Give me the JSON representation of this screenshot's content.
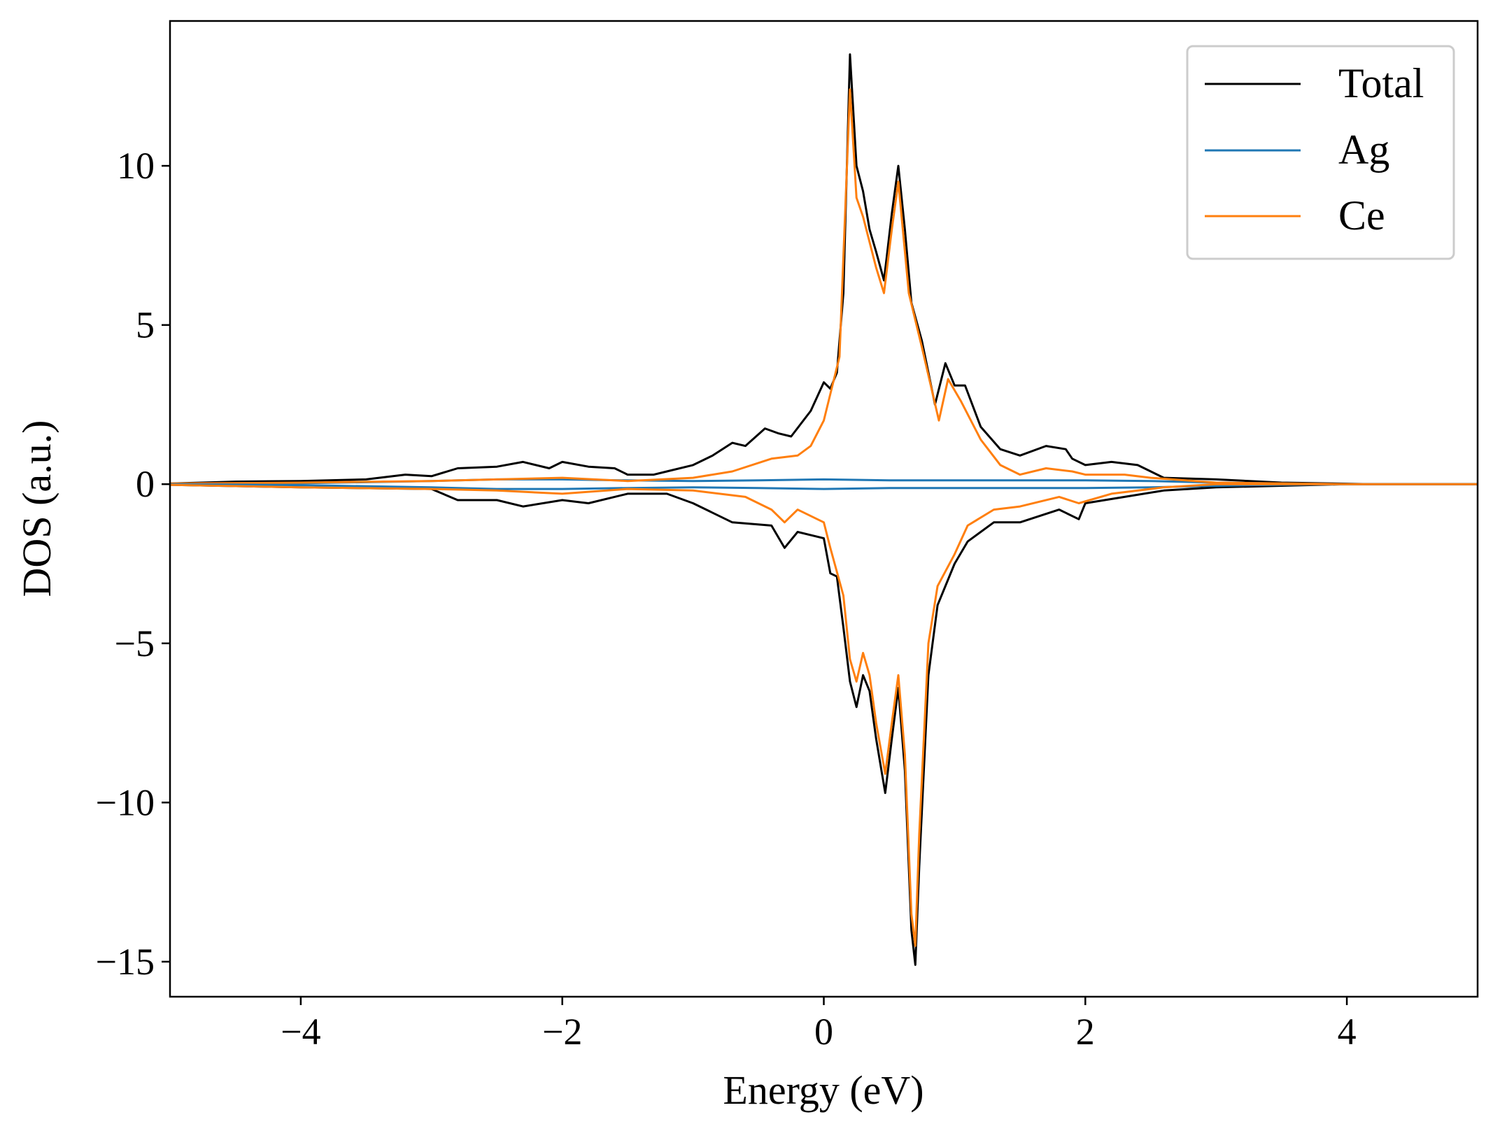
{
  "chart_data": {
    "type": "line",
    "title": "",
    "xlabel": "Energy (eV)",
    "ylabel": "DOS (a.u.)",
    "xlim": [
      -5,
      5
    ],
    "ylim": [
      -16.1,
      14.55
    ],
    "xticks": [
      -4,
      -2,
      0,
      2,
      4
    ],
    "yticks": [
      -15,
      -10,
      -5,
      0,
      5,
      10
    ],
    "xtick_labels": [
      "−4",
      "−2",
      "0",
      "2",
      "4"
    ],
    "ytick_labels": [
      "−15",
      "−10",
      "−5",
      "0",
      "5",
      "10"
    ],
    "grid": false,
    "legend": {
      "placement": "top-right",
      "entries": [
        "Total",
        "Ag",
        "Ce"
      ]
    },
    "series": [
      {
        "name": "Total",
        "color": "#000000",
        "spin": "up",
        "x": [
          -5,
          -4.5,
          -4,
          -3.5,
          -3.2,
          -3,
          -2.8,
          -2.5,
          -2.3,
          -2.1,
          -2,
          -1.8,
          -1.6,
          -1.5,
          -1.3,
          -1.2,
          -1,
          -0.85,
          -0.7,
          -0.6,
          -0.45,
          -0.35,
          -0.25,
          -0.1,
          0,
          0.05,
          0.1,
          0.15,
          0.2,
          0.25,
          0.3,
          0.35,
          0.4,
          0.46,
          0.52,
          0.57,
          0.62,
          0.67,
          0.75,
          0.85,
          0.93,
          1.0,
          1.08,
          1.2,
          1.35,
          1.5,
          1.7,
          1.85,
          1.9,
          2.0,
          2.2,
          2.4,
          2.5,
          2.6,
          3,
          3.5,
          4.2,
          5
        ],
        "y": [
          0.02,
          0.08,
          0.1,
          0.15,
          0.3,
          0.25,
          0.5,
          0.55,
          0.7,
          0.5,
          0.7,
          0.55,
          0.5,
          0.3,
          0.3,
          0.4,
          0.6,
          0.9,
          1.3,
          1.2,
          1.75,
          1.6,
          1.5,
          2.3,
          3.2,
          3.0,
          3.5,
          6.0,
          13.5,
          10.0,
          9.2,
          8.0,
          7.3,
          6.4,
          8.5,
          10.0,
          8.0,
          5.7,
          4.5,
          2.5,
          3.8,
          3.1,
          3.1,
          1.8,
          1.1,
          0.9,
          1.2,
          1.1,
          0.8,
          0.6,
          0.7,
          0.6,
          0.4,
          0.2,
          0.15,
          0.05,
          0,
          0
        ]
      },
      {
        "name": "Ag",
        "color": "#1f77b4",
        "spin": "up",
        "x": [
          -5,
          -4,
          -3,
          -2.5,
          -2,
          -1.5,
          -1,
          -0.5,
          0,
          0.5,
          1,
          1.5,
          2,
          2.5,
          3,
          3.5,
          4,
          5
        ],
        "y": [
          0,
          0.03,
          0.1,
          0.15,
          0.15,
          0.12,
          0.1,
          0.12,
          0.15,
          0.12,
          0.12,
          0.12,
          0.12,
          0.1,
          0.05,
          0.02,
          0,
          0
        ]
      },
      {
        "name": "Ce",
        "color": "#ff7f0e",
        "spin": "up",
        "x": [
          -5,
          -4,
          -3,
          -2.5,
          -2,
          -1.5,
          -1,
          -0.7,
          -0.4,
          -0.2,
          -0.1,
          0,
          0.12,
          0.2,
          0.25,
          0.3,
          0.4,
          0.46,
          0.52,
          0.57,
          0.65,
          0.75,
          0.88,
          0.95,
          1.05,
          1.2,
          1.35,
          1.5,
          1.7,
          1.9,
          2.0,
          2.3,
          2.5,
          3,
          4,
          5
        ],
        "y": [
          0.02,
          0.05,
          0.1,
          0.15,
          0.2,
          0.1,
          0.2,
          0.4,
          0.8,
          0.9,
          1.2,
          2.0,
          4.0,
          12.4,
          9.0,
          8.4,
          6.8,
          6.0,
          8.0,
          9.5,
          6.0,
          4.3,
          2.0,
          3.3,
          2.6,
          1.4,
          0.6,
          0.3,
          0.5,
          0.4,
          0.3,
          0.3,
          0.2,
          0.05,
          0,
          0
        ]
      },
      {
        "name": "Total",
        "color": "#000000",
        "spin": "down",
        "x": [
          -5,
          -4,
          -3,
          -2.8,
          -2.5,
          -2.3,
          -2,
          -1.8,
          -1.5,
          -1.2,
          -1,
          -0.7,
          -0.4,
          -0.3,
          -0.2,
          0,
          0.05,
          0.1,
          0.15,
          0.2,
          0.25,
          0.3,
          0.35,
          0.4,
          0.47,
          0.52,
          0.57,
          0.62,
          0.67,
          0.7,
          0.73,
          0.8,
          0.87,
          1.0,
          1.1,
          1.3,
          1.5,
          1.8,
          1.95,
          2.0,
          2.3,
          2.6,
          3,
          4,
          5
        ],
        "y": [
          -0.02,
          -0.1,
          -0.15,
          -0.5,
          -0.5,
          -0.7,
          -0.5,
          -0.6,
          -0.3,
          -0.3,
          -0.6,
          -1.2,
          -1.3,
          -2.0,
          -1.5,
          -1.7,
          -2.8,
          -2.9,
          -4.5,
          -6.2,
          -7.0,
          -6.0,
          -6.5,
          -8.0,
          -9.7,
          -8.0,
          -6.4,
          -9.0,
          -14.0,
          -15.1,
          -12.0,
          -6.0,
          -3.8,
          -2.5,
          -1.8,
          -1.2,
          -1.2,
          -0.8,
          -1.1,
          -0.6,
          -0.4,
          -0.2,
          -0.1,
          0,
          0
        ]
      },
      {
        "name": "Ag",
        "color": "#1f77b4",
        "spin": "down",
        "x": [
          -5,
          -4,
          -3,
          -2.5,
          -2,
          -1.5,
          -1,
          -0.5,
          0,
          0.5,
          1,
          1.5,
          2,
          2.5,
          3,
          3.5,
          4,
          5
        ],
        "y": [
          0,
          -0.03,
          -0.1,
          -0.15,
          -0.15,
          -0.12,
          -0.1,
          -0.12,
          -0.15,
          -0.12,
          -0.12,
          -0.12,
          -0.12,
          -0.1,
          -0.05,
          -0.02,
          0,
          0
        ]
      },
      {
        "name": "Ce",
        "color": "#ff7f0e",
        "spin": "down",
        "x": [
          -5,
          -4,
          -3,
          -2.5,
          -2,
          -1.5,
          -1,
          -0.6,
          -0.4,
          -0.3,
          -0.2,
          0,
          0.05,
          0.15,
          0.2,
          0.25,
          0.3,
          0.35,
          0.4,
          0.47,
          0.52,
          0.57,
          0.62,
          0.67,
          0.7,
          0.73,
          0.8,
          0.87,
          1.0,
          1.1,
          1.3,
          1.5,
          1.8,
          1.95,
          2.2,
          2.6,
          3,
          5
        ],
        "y": [
          -0.02,
          -0.1,
          -0.15,
          -0.2,
          -0.3,
          -0.15,
          -0.2,
          -0.4,
          -0.8,
          -1.2,
          -0.8,
          -1.2,
          -2.0,
          -3.5,
          -5.5,
          -6.2,
          -5.3,
          -6.0,
          -7.5,
          -9.1,
          -7.5,
          -6.0,
          -8.5,
          -13.5,
          -14.5,
          -11.0,
          -5.0,
          -3.2,
          -2.2,
          -1.3,
          -0.8,
          -0.7,
          -0.4,
          -0.6,
          -0.3,
          -0.1,
          0,
          0
        ]
      }
    ]
  }
}
